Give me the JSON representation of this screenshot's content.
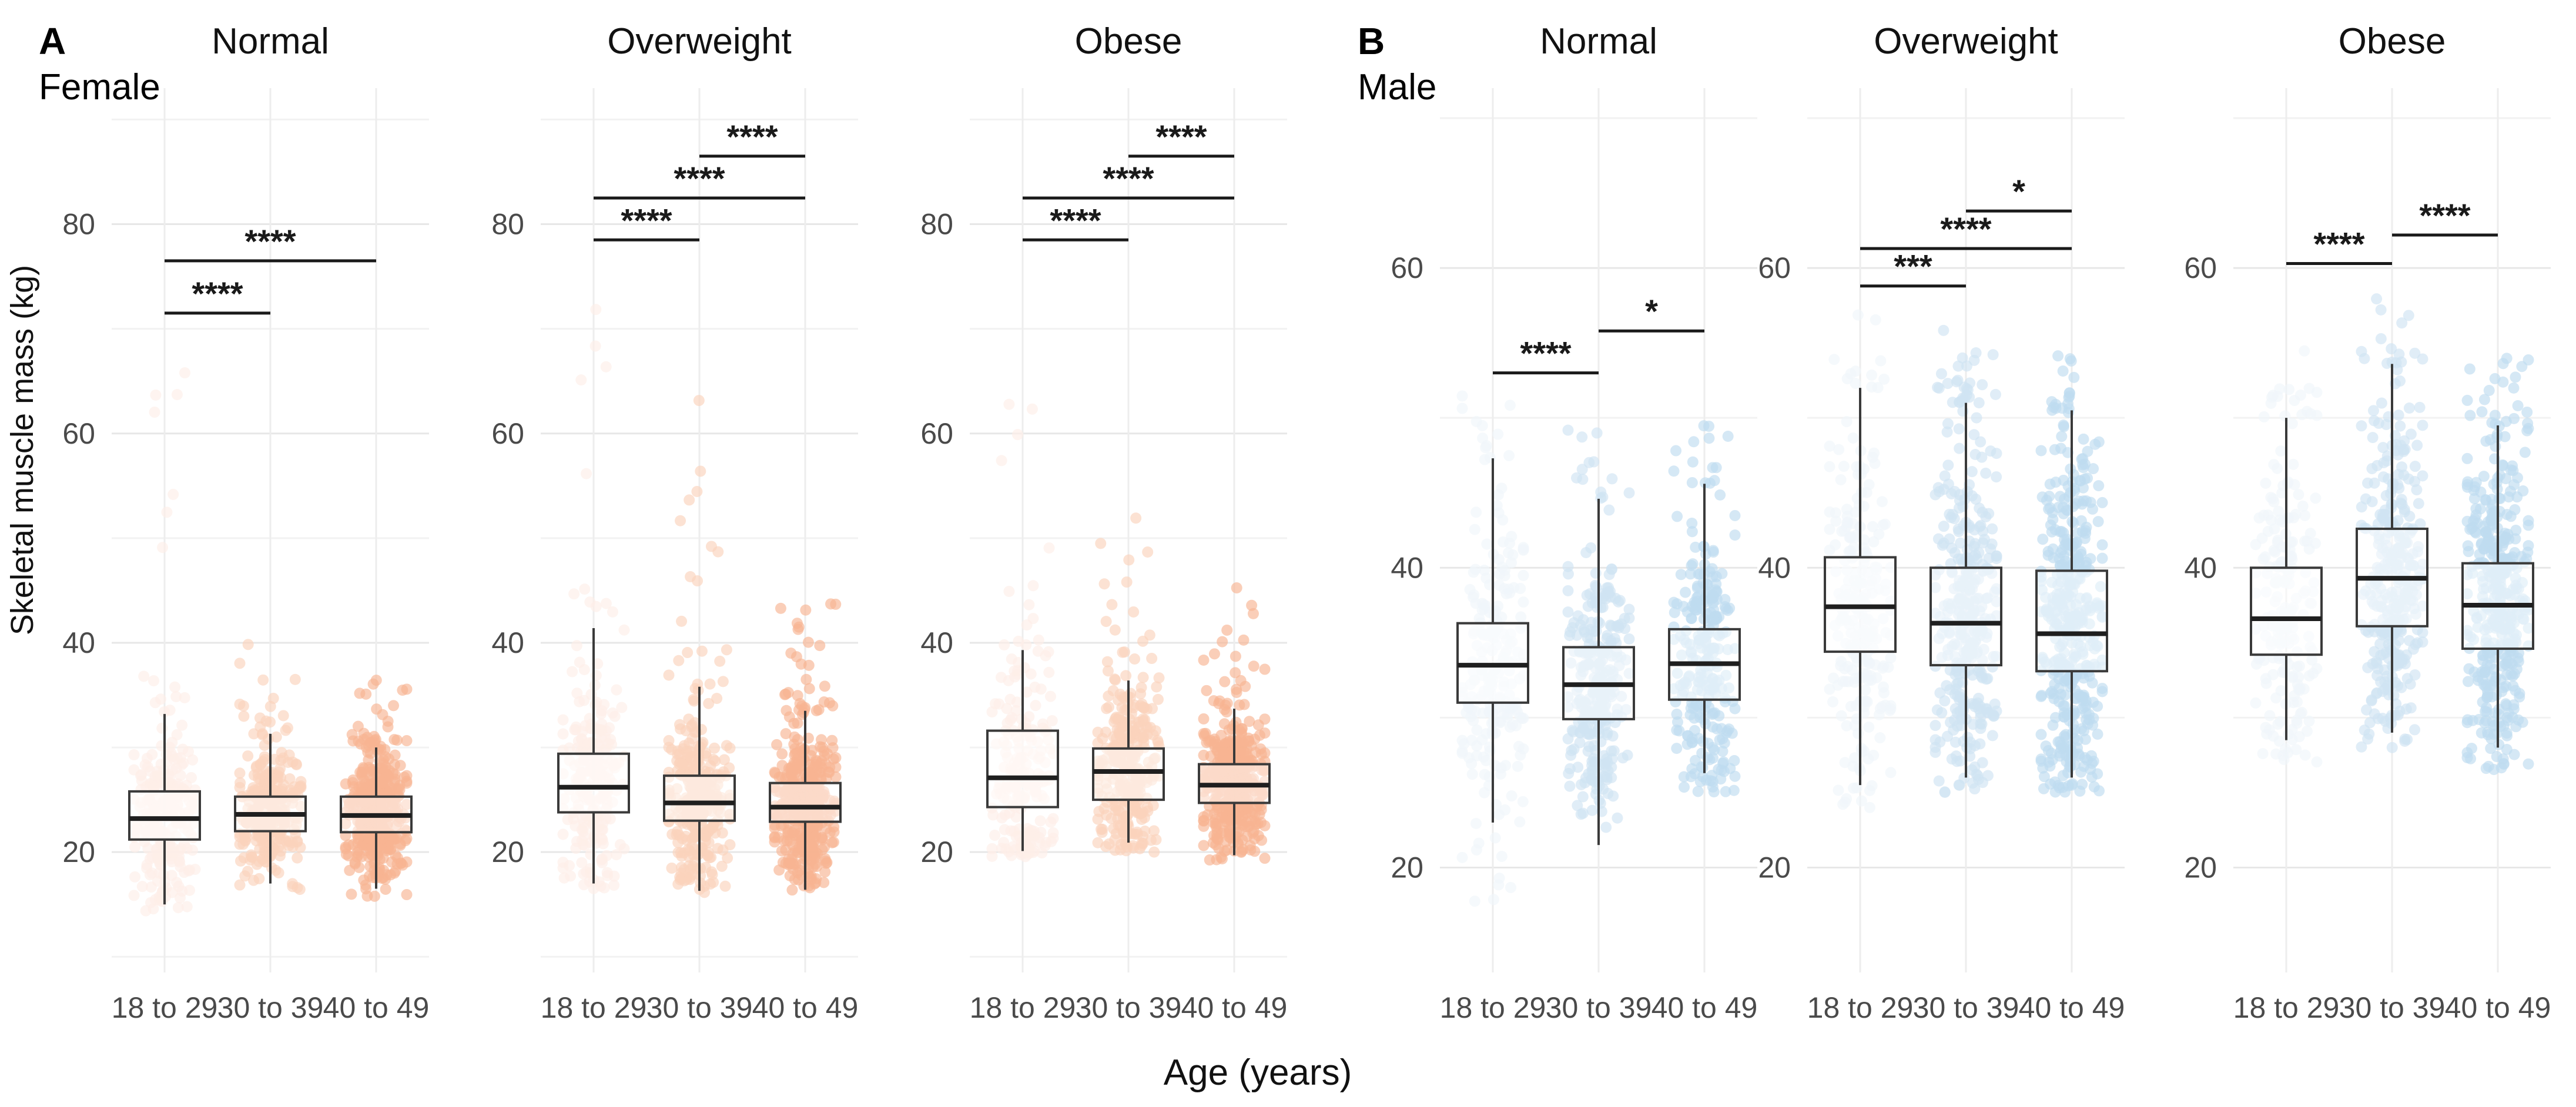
{
  "chart_data": {
    "type": "grouped_boxplot_jitter_facets",
    "xlabel": "Age (years)",
    "ylabel": "Skeletal muscle mass (kg)",
    "categories": [
      "18 to 29",
      "30 to 39",
      "40 to 49"
    ],
    "layout": {
      "grid": "on",
      "legend": "none",
      "facets_per_panel": 3
    },
    "style": {
      "box_fill": "rgba(255,255,255,0.5)",
      "box_stroke": "#3a3a3a",
      "median_stroke": "#1f1f1f",
      "grid_major": "#e7e7e7",
      "grid_minor": "#f2f2f2",
      "grid_vertical": "#ededed",
      "tick_color": "#4a4a4a",
      "sig_color": "#1a1a1a"
    },
    "panels": [
      {
        "label": "A",
        "sublabel": "Female",
        "point_colors": [
          "#fdeee8",
          "#fad3bc",
          "#f8b392"
        ],
        "axis": {
          "ticks": [
            20,
            40,
            60,
            80
          ],
          "minor_ticks": [
            10,
            30,
            50,
            70,
            90
          ],
          "domain": [
            8.5,
            93
          ]
        },
        "facets": [
          {
            "title": "Normal",
            "groups": [
              {
                "category": "18 to 29",
                "whisker_low": 15.0,
                "q1": 21.2,
                "median": 23.2,
                "q3": 25.8,
                "whisker_high": 33.2,
                "points_min": 14.0,
                "points_max": 71.0,
                "n_points": 250
              },
              {
                "category": "30 to 39",
                "whisker_low": 17.0,
                "q1": 22.0,
                "median": 23.6,
                "q3": 25.3,
                "whisker_high": 31.3,
                "points_min": 16.0,
                "points_max": 41.0,
                "n_points": 300
              },
              {
                "category": "40 to 49",
                "whisker_low": 16.5,
                "q1": 21.9,
                "median": 23.5,
                "q3": 25.3,
                "whisker_high": 30.0,
                "points_min": 15.5,
                "points_max": 36.5,
                "n_points": 400
              }
            ],
            "significance": [
              {
                "from": 0,
                "to": 1,
                "label": "****",
                "y": 71.5
              },
              {
                "from": 0,
                "to": 2,
                "label": "****",
                "y": 76.5
              }
            ]
          },
          {
            "title": "Overweight",
            "groups": [
              {
                "category": "18 to 29",
                "whisker_low": 17.0,
                "q1": 23.8,
                "median": 26.2,
                "q3": 29.4,
                "whisker_high": 41.4,
                "points_min": 16.5,
                "points_max": 76.0,
                "n_points": 240
              },
              {
                "category": "30 to 39",
                "whisker_low": 16.3,
                "q1": 23.0,
                "median": 24.7,
                "q3": 27.3,
                "whisker_high": 35.8,
                "points_min": 16.0,
                "points_max": 66.0,
                "n_points": 330
              },
              {
                "category": "40 to 49",
                "whisker_low": 16.4,
                "q1": 22.9,
                "median": 24.3,
                "q3": 26.6,
                "whisker_high": 33.5,
                "points_min": 16.0,
                "points_max": 44.0,
                "n_points": 420
              }
            ],
            "significance": [
              {
                "from": 0,
                "to": 1,
                "label": "****",
                "y": 78.5
              },
              {
                "from": 0,
                "to": 2,
                "label": "****",
                "y": 82.5
              },
              {
                "from": 1,
                "to": 2,
                "label": "****",
                "y": 86.5
              }
            ]
          },
          {
            "title": "Obese",
            "groups": [
              {
                "category": "18 to 29",
                "whisker_low": 20.1,
                "q1": 24.3,
                "median": 27.1,
                "q3": 31.6,
                "whisker_high": 39.3,
                "points_min": 19.5,
                "points_max": 71.0,
                "n_points": 210
              },
              {
                "category": "30 to 39",
                "whisker_low": 20.9,
                "q1": 25.0,
                "median": 27.7,
                "q3": 29.9,
                "whisker_high": 36.4,
                "points_min": 20.0,
                "points_max": 52.0,
                "n_points": 310
              },
              {
                "category": "40 to 49",
                "whisker_low": 19.7,
                "q1": 24.7,
                "median": 26.4,
                "q3": 28.4,
                "whisker_high": 33.7,
                "points_min": 19.0,
                "points_max": 46.0,
                "n_points": 430
              }
            ],
            "significance": [
              {
                "from": 0,
                "to": 1,
                "label": "****",
                "y": 78.5
              },
              {
                "from": 0,
                "to": 2,
                "label": "****",
                "y": 82.5
              },
              {
                "from": 1,
                "to": 2,
                "label": "****",
                "y": 86.5
              }
            ]
          }
        ]
      },
      {
        "label": "B",
        "sublabel": "Male",
        "point_colors": [
          "#f0f6fb",
          "#cfe3f3",
          "#bfdbf0"
        ],
        "axis": {
          "ticks": [
            20,
            40,
            60
          ],
          "minor_ticks": [
            30,
            50,
            70
          ],
          "domain": [
            13,
            72
          ]
        },
        "facets": [
          {
            "title": "Normal",
            "groups": [
              {
                "category": "18 to 29",
                "whisker_low": 23.0,
                "q1": 31.0,
                "median": 33.5,
                "q3": 36.3,
                "whisker_high": 47.3,
                "points_min": 17.0,
                "points_max": 52.0,
                "n_points": 230
              },
              {
                "category": "30 to 39",
                "whisker_low": 21.5,
                "q1": 29.9,
                "median": 32.2,
                "q3": 34.7,
                "whisker_high": 44.6,
                "points_min": 20.5,
                "points_max": 50.0,
                "n_points": 300
              },
              {
                "category": "40 to 49",
                "whisker_low": 26.3,
                "q1": 31.2,
                "median": 33.6,
                "q3": 35.9,
                "whisker_high": 45.6,
                "points_min": 25.0,
                "points_max": 51.0,
                "n_points": 260
              }
            ],
            "significance": [
              {
                "from": 0,
                "to": 1,
                "label": "****",
                "y": 53.0
              },
              {
                "from": 1,
                "to": 2,
                "label": "*",
                "y": 55.8
              }
            ]
          },
          {
            "title": "Overweight",
            "groups": [
              {
                "category": "18 to 29",
                "whisker_low": 25.5,
                "q1": 34.4,
                "median": 37.4,
                "q3": 40.7,
                "whisker_high": 52.0,
                "points_min": 24.0,
                "points_max": 57.0,
                "n_points": 240
              },
              {
                "category": "30 to 39",
                "whisker_low": 26.0,
                "q1": 33.5,
                "median": 36.3,
                "q3": 40.0,
                "whisker_high": 51.0,
                "points_min": 25.0,
                "points_max": 56.0,
                "n_points": 350
              },
              {
                "category": "40 to 49",
                "whisker_low": 26.0,
                "q1": 33.1,
                "median": 35.6,
                "q3": 39.8,
                "whisker_high": 50.5,
                "points_min": 25.0,
                "points_max": 55.0,
                "n_points": 430
              }
            ],
            "significance": [
              {
                "from": 0,
                "to": 1,
                "label": "***",
                "y": 58.8
              },
              {
                "from": 0,
                "to": 2,
                "label": "****",
                "y": 61.3
              },
              {
                "from": 1,
                "to": 2,
                "label": "*",
                "y": 63.8
              }
            ]
          },
          {
            "title": "Obese",
            "groups": [
              {
                "category": "18 to 29",
                "whisker_low": 28.5,
                "q1": 34.2,
                "median": 36.6,
                "q3": 40.0,
                "whisker_high": 50.0,
                "points_min": 27.0,
                "points_max": 55.0,
                "n_points": 210
              },
              {
                "category": "30 to 39",
                "whisker_low": 29.0,
                "q1": 36.1,
                "median": 39.3,
                "q3": 42.6,
                "whisker_high": 53.6,
                "points_min": 28.0,
                "points_max": 58.0,
                "n_points": 340
              },
              {
                "category": "40 to 49",
                "whisker_low": 28.0,
                "q1": 34.6,
                "median": 37.5,
                "q3": 40.3,
                "whisker_high": 49.5,
                "points_min": 26.5,
                "points_max": 54.0,
                "n_points": 410
              }
            ],
            "significance": [
              {
                "from": 0,
                "to": 1,
                "label": "****",
                "y": 60.3
              },
              {
                "from": 1,
                "to": 2,
                "label": "****",
                "y": 62.2
              }
            ]
          }
        ]
      }
    ]
  }
}
